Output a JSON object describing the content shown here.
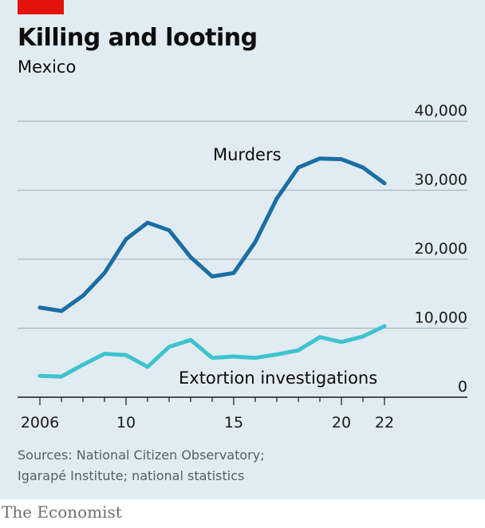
{
  "header": {
    "title": "Killing and looting",
    "subtitle": "Mexico"
  },
  "footer": {
    "source_line_1": "Sources: National Citizen Observatory;",
    "source_line_2": "Igarapé Institute; national statistics",
    "brand": "The Economist"
  },
  "colors": {
    "background": "#e1ebf2",
    "accent_tag": "#e3120b",
    "murders": "#1a6ea3",
    "extortion": "#3ec3cf",
    "gridline": "#a9b8c2",
    "axis": "#1a1a1a"
  },
  "chart_data": {
    "type": "line",
    "title": "Killing and looting",
    "subtitle": "Mexico",
    "x": [
      2006,
      2007,
      2008,
      2009,
      2010,
      2011,
      2012,
      2013,
      2014,
      2015,
      2016,
      2017,
      2018,
      2019,
      2020,
      2021,
      2022
    ],
    "x_tick_values": [
      2006,
      2010,
      2015,
      2020,
      2022
    ],
    "x_tick_labels": [
      "2006",
      "10",
      "15",
      "20",
      "22"
    ],
    "ylim": [
      0,
      40000
    ],
    "y_ticks": [
      0,
      10000,
      20000,
      30000,
      40000
    ],
    "y_tick_labels": [
      "0",
      "10,000",
      "20,000",
      "30,000",
      "40,000"
    ],
    "y_axis_side": "right",
    "grid": true,
    "series": [
      {
        "name": "Murders",
        "values": [
          13000,
          12500,
          14700,
          18000,
          22900,
          25300,
          24200,
          20300,
          17500,
          18000,
          22500,
          28800,
          33300,
          34600,
          34500,
          33300,
          31000
        ]
      },
      {
        "name": "Extortion investigations",
        "values": [
          3100,
          3000,
          4700,
          6300,
          6100,
          4400,
          7300,
          8300,
          5700,
          5900,
          5700,
          6200,
          6800,
          8700,
          8000,
          8800,
          10300
        ]
      }
    ]
  }
}
